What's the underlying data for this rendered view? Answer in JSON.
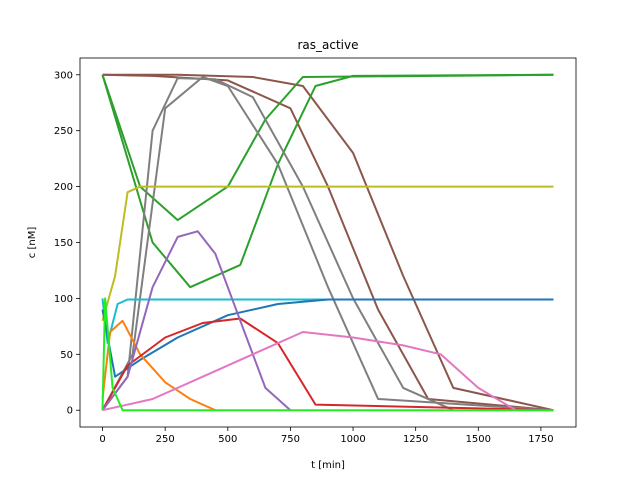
{
  "chart_data": {
    "type": "line",
    "title": "ras_active",
    "xlabel": "t [min]",
    "ylabel": "c [nM]",
    "xlim": [
      -90,
      1890
    ],
    "ylim": [
      -15,
      315
    ],
    "xticks": [
      0,
      250,
      500,
      750,
      1000,
      1250,
      1500,
      1750
    ],
    "yticks": [
      0,
      50,
      100,
      150,
      200,
      250,
      300
    ],
    "grid": false,
    "legend": false,
    "palette": {
      "blue": "#1f77b4",
      "orange": "#ff7f0e",
      "green": "#2ca02c",
      "red": "#d62728",
      "purple": "#9467bd",
      "brown": "#8c564b",
      "pink": "#e377c2",
      "gray": "#7f7f7f",
      "olive": "#bcbd22",
      "cyan": "#17becf",
      "lime": "#22ee22"
    },
    "series": [
      {
        "color": "brown",
        "linewidth": 2,
        "x": [
          0,
          300,
          600,
          800,
          1000,
          1200,
          1400,
          1800
        ],
        "y": [
          300,
          300,
          298,
          290,
          230,
          120,
          20,
          0
        ]
      },
      {
        "color": "brown",
        "linewidth": 2,
        "x": [
          0,
          200,
          500,
          750,
          900,
          1100,
          1300,
          1800
        ],
        "y": [
          300,
          299,
          295,
          270,
          200,
          90,
          10,
          0
        ]
      },
      {
        "color": "green",
        "linewidth": 2,
        "x": [
          0,
          80,
          200,
          350,
          550,
          700,
          850,
          1000,
          1800
        ],
        "y": [
          300,
          240,
          150,
          110,
          130,
          220,
          290,
          299,
          300
        ]
      },
      {
        "color": "green",
        "linewidth": 2,
        "x": [
          0,
          60,
          150,
          300,
          500,
          650,
          800,
          1800
        ],
        "y": [
          300,
          260,
          200,
          170,
          200,
          260,
          298,
          300
        ]
      },
      {
        "color": "gray",
        "linewidth": 2,
        "x": [
          0,
          100,
          200,
          300,
          450,
          600,
          800,
          1000,
          1200,
          1400
        ],
        "y": [
          0,
          30,
          250,
          297,
          296,
          280,
          200,
          100,
          20,
          0
        ]
      },
      {
        "color": "gray",
        "linewidth": 2,
        "x": [
          0,
          120,
          250,
          400,
          500,
          700,
          900,
          1100,
          1800
        ],
        "y": [
          0,
          50,
          270,
          298,
          290,
          220,
          110,
          10,
          0
        ]
      },
      {
        "color": "olive",
        "linewidth": 2,
        "x": [
          0,
          50,
          100,
          150,
          1800
        ],
        "y": [
          80,
          120,
          195,
          200,
          200
        ]
      },
      {
        "color": "cyan",
        "linewidth": 2,
        "x": [
          0,
          20,
          60,
          100,
          1800
        ],
        "y": [
          100,
          60,
          95,
          99,
          99
        ]
      },
      {
        "color": "blue",
        "linewidth": 2,
        "x": [
          0,
          50,
          150,
          300,
          500,
          700,
          900,
          1800
        ],
        "y": [
          90,
          30,
          45,
          65,
          85,
          95,
          99,
          99
        ]
      },
      {
        "color": "orange",
        "linewidth": 2,
        "x": [
          0,
          30,
          80,
          150,
          250,
          350,
          450
        ],
        "y": [
          10,
          70,
          80,
          50,
          25,
          10,
          0
        ]
      },
      {
        "color": "red",
        "linewidth": 2,
        "x": [
          0,
          100,
          250,
          400,
          550,
          700,
          850,
          1800
        ],
        "y": [
          0,
          40,
          65,
          78,
          82,
          60,
          5,
          0
        ]
      },
      {
        "color": "purple",
        "linewidth": 2,
        "x": [
          0,
          100,
          200,
          300,
          380,
          450,
          550,
          650,
          750
        ],
        "y": [
          0,
          30,
          110,
          155,
          160,
          140,
          80,
          20,
          0
        ]
      },
      {
        "color": "pink",
        "linewidth": 2,
        "x": [
          0,
          200,
          400,
          600,
          800,
          1000,
          1200,
          1350,
          1500,
          1650
        ],
        "y": [
          0,
          10,
          30,
          50,
          70,
          65,
          58,
          50,
          20,
          0
        ]
      },
      {
        "color": "lime",
        "linewidth": 2,
        "x": [
          0,
          10,
          40,
          80,
          1800
        ],
        "y": [
          0,
          100,
          20,
          0,
          0
        ]
      }
    ]
  }
}
